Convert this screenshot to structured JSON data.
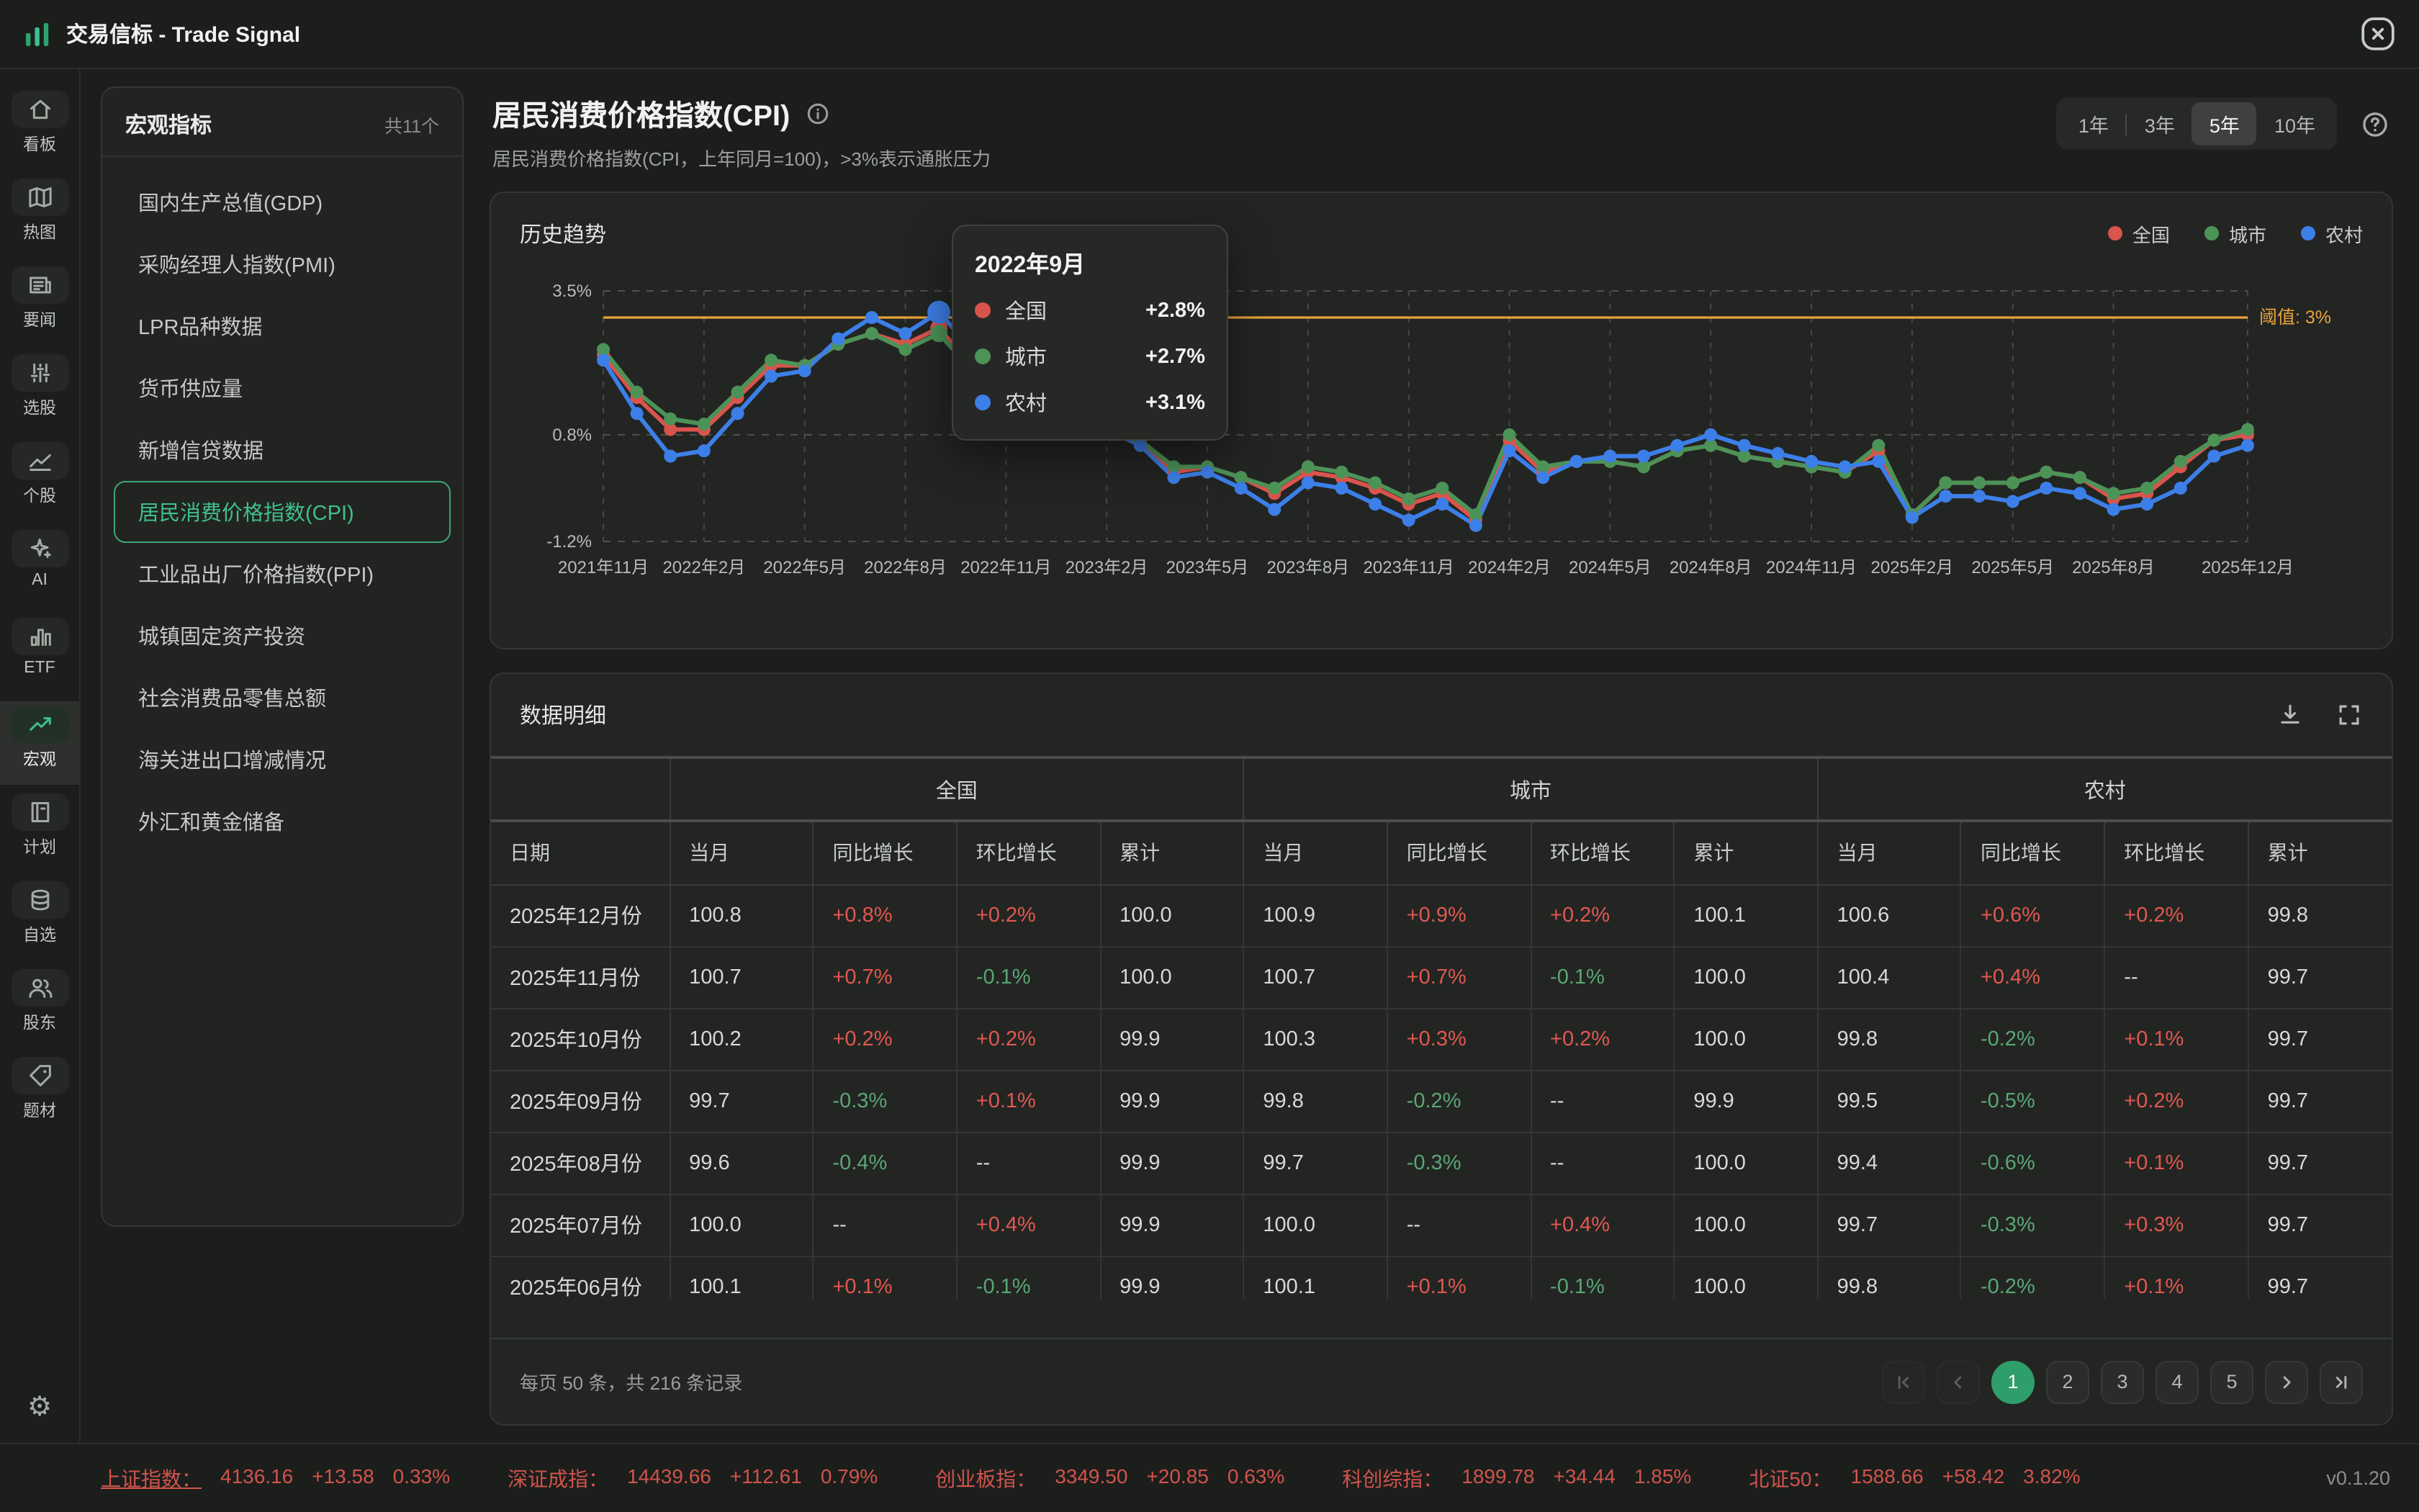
{
  "app": {
    "title": "交易信标 - Trade Signal",
    "version": "v0.1.20"
  },
  "colors": {
    "accent_green": "#3ec08d",
    "up_red": "#e0584f",
    "down_green": "#5aa673",
    "threshold_orange": "#e8a33c",
    "icon_gray": "#a6aaa6"
  },
  "nav_rail": {
    "items": [
      {
        "key": "dashboard",
        "label": "看板",
        "icon": "home",
        "active": false
      },
      {
        "key": "heatmap",
        "label": "热图",
        "icon": "map",
        "active": false
      },
      {
        "key": "news",
        "label": "要闻",
        "icon": "news",
        "active": false
      },
      {
        "key": "screener",
        "label": "选股",
        "icon": "sliders",
        "active": false
      },
      {
        "key": "stocks",
        "label": "个股",
        "icon": "stock-line",
        "active": false
      },
      {
        "key": "ai",
        "label": "AI",
        "icon": "sparkles",
        "active": false
      },
      {
        "key": "etf",
        "label": "ETF",
        "icon": "bars",
        "active": false
      },
      {
        "key": "macro",
        "label": "宏观",
        "icon": "trend-up",
        "active": true
      },
      {
        "key": "plan",
        "label": "计划",
        "icon": "notebook",
        "active": false
      },
      {
        "key": "watchlist",
        "label": "自选",
        "icon": "database",
        "active": false
      },
      {
        "key": "holders",
        "label": "股东",
        "icon": "users",
        "active": false
      },
      {
        "key": "themes",
        "label": "题材",
        "icon": "tag",
        "active": false
      }
    ],
    "settings_glyph": "⚙"
  },
  "sidebar": {
    "title": "宏观指标",
    "count_label": "共11个",
    "items": [
      {
        "label": "国内生产总值(GDP)",
        "active": false
      },
      {
        "label": "采购经理人指数(PMI)",
        "active": false
      },
      {
        "label": "LPR品种数据",
        "active": false
      },
      {
        "label": "货币供应量",
        "active": false
      },
      {
        "label": "新增信贷数据",
        "active": false
      },
      {
        "label": "居民消费价格指数(CPI)",
        "active": true
      },
      {
        "label": "工业品出厂价格指数(PPI)",
        "active": false
      },
      {
        "label": "城镇固定资产投资",
        "active": false
      },
      {
        "label": "社会消费品零售总额",
        "active": false
      },
      {
        "label": "海关进出口增减情况",
        "active": false
      },
      {
        "label": "外汇和黄金储备",
        "active": false
      }
    ]
  },
  "main": {
    "title": "居民消费价格指数(CPI)",
    "subtitle": "居民消费价格指数(CPI，上年同月=100)，>3%表示通胀压力",
    "range_options": [
      "1年",
      "3年",
      "5年",
      "10年"
    ],
    "range_active": "5年"
  },
  "chart_card": {
    "title": "历史趋势",
    "tooltip": {
      "title": "2022年9月",
      "rows": [
        {
          "name": "全国",
          "value": "+2.8%",
          "color": "#d9544d"
        },
        {
          "name": "城市",
          "value": "+2.7%",
          "color": "#4c9357"
        },
        {
          "name": "农村",
          "value": "+3.1%",
          "color": "#3d7fe8"
        }
      ]
    }
  },
  "chart_data": {
    "type": "line",
    "title": "历史趋势",
    "x_start": "2021年11月",
    "x_end": "2025年12月",
    "points": 50,
    "y_axis": {
      "top": 3.5,
      "bottom": -1.2
    },
    "y_ticks": [
      {
        "v": 3.5,
        "label": "3.5%"
      },
      {
        "v": 0.8,
        "label": "0.8%"
      },
      {
        "v": -1.2,
        "label": "-1.2%"
      }
    ],
    "x_ticks": [
      {
        "i": 0,
        "label": "2021年11月"
      },
      {
        "i": 3,
        "label": "2022年2月"
      },
      {
        "i": 6,
        "label": "2022年5月"
      },
      {
        "i": 9,
        "label": "2022年8月"
      },
      {
        "i": 12,
        "label": "2022年11月"
      },
      {
        "i": 15,
        "label": "2023年2月"
      },
      {
        "i": 18,
        "label": "2023年5月"
      },
      {
        "i": 21,
        "label": "2023年8月"
      },
      {
        "i": 24,
        "label": "2023年11月"
      },
      {
        "i": 27,
        "label": "2024年2月"
      },
      {
        "i": 30,
        "label": "2024年5月"
      },
      {
        "i": 33,
        "label": "2024年8月"
      },
      {
        "i": 36,
        "label": "2024年11月"
      },
      {
        "i": 39,
        "label": "2025年2月"
      },
      {
        "i": 42,
        "label": "2025年5月"
      },
      {
        "i": 45,
        "label": "2025年8月"
      },
      {
        "i": 49,
        "label": "2025年12月"
      }
    ],
    "threshold": {
      "value": 3,
      "label": "阈值: 3%",
      "color": "#e8a33c"
    },
    "highlight": {
      "index": 10,
      "label": "2022年9月"
    },
    "legend_position": "top-right",
    "grid": "dashed",
    "series": [
      {
        "name": "全国",
        "color": "#d9544d",
        "values": [
          2.3,
          1.5,
          0.9,
          0.9,
          1.5,
          2.1,
          2.1,
          2.5,
          2.7,
          2.5,
          2.8,
          2.1,
          1.6,
          1.8,
          2.1,
          1.0,
          0.7,
          0.1,
          0.2,
          0.0,
          -0.3,
          0.1,
          0.0,
          -0.2,
          -0.5,
          -0.3,
          -0.8,
          0.7,
          0.1,
          0.3,
          0.3,
          0.2,
          0.5,
          0.6,
          0.4,
          0.3,
          0.2,
          0.1,
          0.5,
          -0.7,
          -0.1,
          -0.1,
          -0.1,
          0.1,
          0.0,
          -0.4,
          -0.3,
          0.2,
          0.7,
          0.8
        ]
      },
      {
        "name": "城市",
        "color": "#4c9357",
        "values": [
          2.4,
          1.6,
          1.1,
          1.0,
          1.6,
          2.2,
          2.1,
          2.5,
          2.7,
          2.4,
          2.7,
          2.0,
          1.6,
          1.8,
          2.1,
          1.0,
          0.7,
          0.2,
          0.2,
          0.0,
          -0.2,
          0.2,
          0.1,
          -0.1,
          -0.4,
          -0.2,
          -0.7,
          0.8,
          0.2,
          0.3,
          0.3,
          0.2,
          0.5,
          0.6,
          0.4,
          0.3,
          0.2,
          0.1,
          0.6,
          -0.7,
          -0.1,
          -0.1,
          -0.1,
          0.1,
          0.0,
          -0.3,
          -0.2,
          0.3,
          0.7,
          0.9
        ]
      },
      {
        "name": "农村",
        "color": "#3d7fe8",
        "values": [
          2.2,
          1.2,
          0.4,
          0.5,
          1.2,
          1.9,
          2.0,
          2.6,
          3.0,
          2.7,
          3.1,
          2.4,
          1.8,
          2.0,
          2.1,
          0.9,
          0.6,
          0.0,
          0.1,
          -0.2,
          -0.6,
          -0.1,
          -0.2,
          -0.5,
          -0.8,
          -0.5,
          -0.9,
          0.5,
          0.0,
          0.3,
          0.4,
          0.4,
          0.6,
          0.8,
          0.6,
          0.45,
          0.3,
          0.2,
          0.3,
          -0.75,
          -0.35,
          -0.35,
          -0.45,
          -0.2,
          -0.3,
          -0.6,
          -0.5,
          -0.2,
          0.4,
          0.6
        ]
      }
    ]
  },
  "table": {
    "title": "数据明细",
    "date_column": "日期",
    "groups": [
      "全国",
      "城市",
      "农村"
    ],
    "sub_columns": [
      "当月",
      "同比增长",
      "环比增长",
      "累计"
    ],
    "rows": [
      {
        "date": "2025年12月份",
        "cells": [
          [
            "100.8",
            "+0.8%",
            "+0.2%",
            "100.0"
          ],
          [
            "100.9",
            "+0.9%",
            "+0.2%",
            "100.1"
          ],
          [
            "100.6",
            "+0.6%",
            "+0.2%",
            "99.8"
          ]
        ]
      },
      {
        "date": "2025年11月份",
        "cells": [
          [
            "100.7",
            "+0.7%",
            "-0.1%",
            "100.0"
          ],
          [
            "100.7",
            "+0.7%",
            "-0.1%",
            "100.0"
          ],
          [
            "100.4",
            "+0.4%",
            "--",
            "99.7"
          ]
        ]
      },
      {
        "date": "2025年10月份",
        "cells": [
          [
            "100.2",
            "+0.2%",
            "+0.2%",
            "99.9"
          ],
          [
            "100.3",
            "+0.3%",
            "+0.2%",
            "100.0"
          ],
          [
            "99.8",
            "-0.2%",
            "+0.1%",
            "99.7"
          ]
        ]
      },
      {
        "date": "2025年09月份",
        "cells": [
          [
            "99.7",
            "-0.3%",
            "+0.1%",
            "99.9"
          ],
          [
            "99.8",
            "-0.2%",
            "--",
            "99.9"
          ],
          [
            "99.5",
            "-0.5%",
            "+0.2%",
            "99.7"
          ]
        ]
      },
      {
        "date": "2025年08月份",
        "cells": [
          [
            "99.6",
            "-0.4%",
            "--",
            "99.9"
          ],
          [
            "99.7",
            "-0.3%",
            "--",
            "100.0"
          ],
          [
            "99.4",
            "-0.6%",
            "+0.1%",
            "99.7"
          ]
        ]
      },
      {
        "date": "2025年07月份",
        "cells": [
          [
            "100.0",
            "--",
            "+0.4%",
            "99.9"
          ],
          [
            "100.0",
            "--",
            "+0.4%",
            "100.0"
          ],
          [
            "99.7",
            "-0.3%",
            "+0.3%",
            "99.7"
          ]
        ]
      },
      {
        "date": "2025年06月份",
        "cells": [
          [
            "100.1",
            "+0.1%",
            "-0.1%",
            "99.9"
          ],
          [
            "100.1",
            "+0.1%",
            "-0.1%",
            "100.0"
          ],
          [
            "99.8",
            "-0.2%",
            "+0.1%",
            "99.7"
          ]
        ]
      }
    ]
  },
  "pagination": {
    "summary": "每页 50 条，共 216 条记录",
    "pages": [
      "1",
      "2",
      "3",
      "4",
      "5"
    ],
    "active_page": "1"
  },
  "ticker": {
    "items": [
      {
        "label": "上证指数：",
        "value": "4136.16",
        "change": "+13.58",
        "pct": "0.33%",
        "underlined": true
      },
      {
        "label": "深证成指：",
        "value": "14439.66",
        "change": "+112.61",
        "pct": "0.79%",
        "underlined": false
      },
      {
        "label": "创业板指：",
        "value": "3349.50",
        "change": "+20.85",
        "pct": "0.63%",
        "underlined": false
      },
      {
        "label": "科创综指：",
        "value": "1899.78",
        "change": "+34.44",
        "pct": "1.85%",
        "underlined": false
      },
      {
        "label": "北证50：",
        "value": "1588.66",
        "change": "+58.42",
        "pct": "3.82%",
        "underlined": false
      }
    ]
  }
}
